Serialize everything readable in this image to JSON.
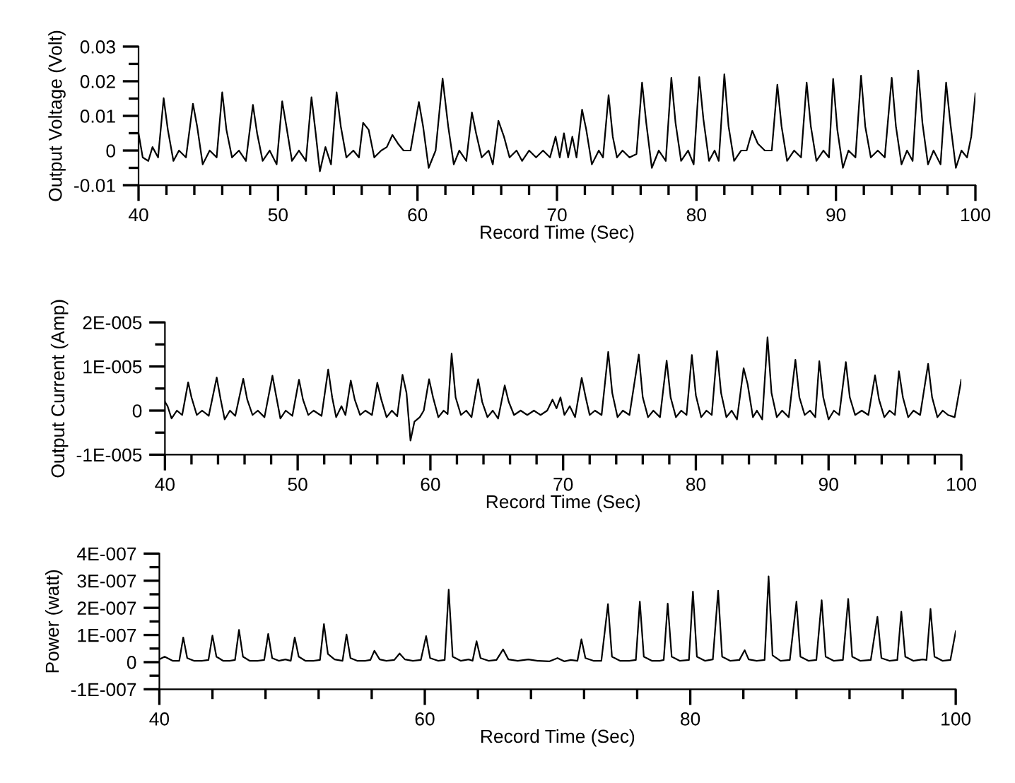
{
  "chart_data": [
    {
      "type": "line",
      "xlabel": "Record Time (Sec)",
      "ylabel": "Output Voltage (Volt)",
      "xlim": [
        40,
        100
      ],
      "ylim": [
        -0.01,
        0.03
      ],
      "xticks": [
        40,
        {
          "value": 42,
          "label": null
        },
        {
          "value": 44,
          "label": null
        },
        {
          "value": 46,
          "label": null
        },
        {
          "value": 48,
          "label": null
        },
        50,
        {
          "value": 52,
          "label": null
        },
        {
          "value": 54,
          "label": null
        },
        {
          "value": 56,
          "label": null
        },
        {
          "value": 58,
          "label": null
        },
        60,
        {
          "value": 62,
          "label": null
        },
        {
          "value": 64,
          "label": null
        },
        {
          "value": 66,
          "label": null
        },
        {
          "value": 68,
          "label": null
        },
        70,
        {
          "value": 72,
          "label": null
        },
        {
          "value": 74,
          "label": null
        },
        {
          "value": 76,
          "label": null
        },
        {
          "value": 78,
          "label": null
        },
        80,
        {
          "value": 82,
          "label": null
        },
        {
          "value": 84,
          "label": null
        },
        {
          "value": 86,
          "label": null
        },
        {
          "value": 88,
          "label": null
        },
        90,
        {
          "value": 92,
          "label": null
        },
        {
          "value": 94,
          "label": null
        },
        {
          "value": 96,
          "label": null
        },
        {
          "value": 98,
          "label": null
        },
        100
      ],
      "yticks": [
        -0.01,
        {
          "value": -0.005,
          "label": null
        },
        0,
        {
          "value": 0.005,
          "label": null
        },
        0.01,
        {
          "value": 0.015,
          "label": null
        },
        0.02,
        {
          "value": 0.025,
          "label": null
        },
        0.03
      ],
      "x": [
        40.0,
        40.3,
        40.7,
        41.0,
        41.4,
        41.8,
        42.1,
        42.5,
        42.9,
        43.4,
        43.9,
        44.2,
        44.6,
        45.1,
        45.6,
        46.0,
        46.3,
        46.7,
        47.2,
        47.7,
        48.2,
        48.5,
        48.9,
        49.4,
        49.9,
        50.3,
        50.6,
        51.0,
        51.5,
        52.0,
        52.4,
        52.7,
        53.0,
        53.4,
        53.8,
        54.2,
        54.5,
        54.9,
        55.4,
        55.8,
        56.1,
        56.5,
        56.9,
        57.4,
        57.8,
        58.2,
        58.6,
        59.0,
        59.5,
        60.1,
        60.4,
        60.8,
        61.3,
        61.8,
        62.2,
        62.6,
        63.0,
        63.5,
        63.9,
        64.2,
        64.6,
        65.1,
        65.4,
        65.8,
        66.2,
        66.6,
        67.1,
        67.5,
        68.0,
        68.5,
        69.0,
        69.5,
        69.9,
        70.2,
        70.5,
        70.8,
        71.1,
        71.4,
        71.8,
        72.1,
        72.5,
        73.0,
        73.3,
        73.7,
        74.0,
        74.3,
        74.7,
        75.2,
        75.7,
        76.1,
        76.4,
        76.8,
        77.3,
        77.8,
        78.2,
        78.5,
        78.9,
        79.4,
        79.8,
        80.2,
        80.5,
        80.9,
        81.3,
        81.6,
        82.0,
        82.3,
        82.7,
        83.2,
        83.6,
        84.0,
        84.4,
        84.9,
        85.4,
        85.8,
        86.1,
        86.5,
        87.0,
        87.5,
        87.9,
        88.2,
        88.6,
        89.1,
        89.5,
        89.8,
        90.1,
        90.5,
        90.9,
        91.4,
        91.8,
        92.1,
        92.5,
        93.0,
        93.5,
        94.0,
        94.3,
        94.7,
        95.1,
        95.5,
        95.9,
        96.2,
        96.6,
        97.0,
        97.5,
        97.9,
        98.2,
        98.6,
        99.0,
        99.4,
        99.7,
        100.0
      ],
      "series": [
        {
          "color": "#000000",
          "values": [
            0.005,
            -0.002,
            -0.003,
            0.001,
            -0.002,
            0.0151,
            0.006,
            -0.003,
            0.0,
            -0.002,
            0.0135,
            0.007,
            -0.004,
            0.0,
            -0.002,
            0.0168,
            0.006,
            -0.002,
            0.0,
            -0.003,
            0.0132,
            0.005,
            -0.003,
            0.0,
            -0.004,
            0.0142,
            0.007,
            -0.003,
            0.0,
            -0.003,
            0.0154,
            0.005,
            -0.006,
            0.001,
            -0.004,
            0.0168,
            0.007,
            -0.002,
            0.0,
            -0.002,
            0.008,
            0.006,
            -0.002,
            0.0,
            0.001,
            0.0045,
            0.002,
            0.0,
            0.0,
            0.014,
            0.007,
            -0.005,
            0.0,
            0.0208,
            0.007,
            -0.004,
            0.0,
            -0.003,
            0.011,
            0.005,
            -0.002,
            0.0,
            -0.004,
            0.0086,
            0.004,
            -0.002,
            0.0,
            -0.003,
            0.0,
            -0.002,
            0.0,
            -0.002,
            0.004,
            -0.002,
            0.005,
            -0.002,
            0.004,
            -0.002,
            0.0118,
            0.006,
            -0.004,
            0.0,
            -0.002,
            0.016,
            0.004,
            -0.002,
            0.0,
            -0.002,
            -0.001,
            0.0196,
            0.008,
            -0.005,
            0.0,
            -0.003,
            0.021,
            0.008,
            -0.003,
            0.0,
            -0.004,
            0.0212,
            0.009,
            -0.003,
            0.0,
            -0.003,
            0.022,
            0.007,
            -0.003,
            0.0,
            0.0,
            0.0057,
            0.002,
            0.0,
            0.0,
            0.019,
            0.007,
            -0.003,
            0.0,
            -0.002,
            0.0196,
            0.007,
            -0.003,
            0.0,
            -0.002,
            0.0207,
            0.006,
            -0.005,
            0.0,
            -0.002,
            0.0216,
            0.007,
            -0.002,
            0.0,
            -0.002,
            0.021,
            0.007,
            -0.004,
            0.0,
            -0.003,
            0.0231,
            0.008,
            -0.004,
            0.0,
            -0.004,
            0.0196,
            0.008,
            -0.005,
            0.0,
            -0.002,
            0.004,
            0.0165
          ]
        }
      ]
    },
    {
      "type": "line",
      "xlabel": "Record Time (Sec)",
      "ylabel": "Output Current (Amp)",
      "xlim": [
        40,
        100
      ],
      "ylim": [
        -1e-05,
        2e-05
      ],
      "xticks": [
        40,
        {
          "value": 42,
          "label": null
        },
        {
          "value": 44,
          "label": null
        },
        {
          "value": 46,
          "label": null
        },
        {
          "value": 48,
          "label": null
        },
        50,
        {
          "value": 52,
          "label": null
        },
        {
          "value": 54,
          "label": null
        },
        {
          "value": 56,
          "label": null
        },
        {
          "value": 58,
          "label": null
        },
        60,
        {
          "value": 62,
          "label": null
        },
        {
          "value": 64,
          "label": null
        },
        {
          "value": 66,
          "label": null
        },
        {
          "value": 68,
          "label": null
        },
        70,
        {
          "value": 72,
          "label": null
        },
        {
          "value": 74,
          "label": null
        },
        {
          "value": 76,
          "label": null
        },
        {
          "value": 78,
          "label": null
        },
        80,
        {
          "value": 82,
          "label": null
        },
        {
          "value": 84,
          "label": null
        },
        {
          "value": 86,
          "label": null
        },
        {
          "value": 88,
          "label": null
        },
        90,
        {
          "value": 92,
          "label": null
        },
        {
          "value": 94,
          "label": null
        },
        {
          "value": 96,
          "label": null
        },
        {
          "value": 98,
          "label": null
        },
        100
      ],
      "yticks": [
        {
          "value": -1e-05,
          "label": "-1E-005"
        },
        {
          "value": -5e-06,
          "label": null
        },
        0,
        {
          "value": 5e-06,
          "label": null
        },
        {
          "value": 1e-05,
          "label": "1E-005"
        },
        {
          "value": 1.5e-05,
          "label": null
        },
        {
          "value": 2e-05,
          "label": "2E-005"
        }
      ],
      "x": [
        40.0,
        40.2,
        40.5,
        40.9,
        41.3,
        41.75,
        42.0,
        42.4,
        42.8,
        43.3,
        43.9,
        44.2,
        44.5,
        44.9,
        45.3,
        45.9,
        46.2,
        46.6,
        47.0,
        47.5,
        48.1,
        48.4,
        48.7,
        49.1,
        49.6,
        50.1,
        50.4,
        50.8,
        51.2,
        51.8,
        52.3,
        52.6,
        52.9,
        53.3,
        53.6,
        54.0,
        54.3,
        54.7,
        55.1,
        55.6,
        56.0,
        56.3,
        56.7,
        57.1,
        57.5,
        57.9,
        58.2,
        58.5,
        58.8,
        59.2,
        59.5,
        59.9,
        60.2,
        60.6,
        61.0,
        61.3,
        61.6,
        61.9,
        62.3,
        62.7,
        63.1,
        63.6,
        63.9,
        64.3,
        64.7,
        65.1,
        65.6,
        65.9,
        66.3,
        66.8,
        67.3,
        67.8,
        68.3,
        68.8,
        69.2,
        69.5,
        69.8,
        70.1,
        70.5,
        70.9,
        71.4,
        71.7,
        72.0,
        72.4,
        72.9,
        73.4,
        73.7,
        74.1,
        74.5,
        75.0,
        75.7,
        76.0,
        76.4,
        76.8,
        77.3,
        77.8,
        78.1,
        78.5,
        78.9,
        79.3,
        79.7,
        80.0,
        80.4,
        80.8,
        81.2,
        81.6,
        81.9,
        82.3,
        82.7,
        83.1,
        83.6,
        83.9,
        84.3,
        84.6,
        85.0,
        85.4,
        85.7,
        86.1,
        86.5,
        87.0,
        87.5,
        87.8,
        88.2,
        88.6,
        89.0,
        89.3,
        89.6,
        90.0,
        90.4,
        90.8,
        91.3,
        91.6,
        92.0,
        92.5,
        93.0,
        93.5,
        93.8,
        94.2,
        94.6,
        95.0,
        95.3,
        95.6,
        96.0,
        96.4,
        96.9,
        97.5,
        97.8,
        98.2,
        98.6,
        99.0,
        99.5,
        100.0
      ],
      "series": [
        {
          "color": "#000000",
          "values": [
            2e-06,
            1e-06,
            -1.8e-06,
            0.0,
            -1e-06,
            6.4e-06,
            3e-06,
            -1e-06,
            0.0,
            -1.2e-06,
            7.5e-06,
            2.5e-06,
            -2e-06,
            0.0,
            -1.2e-06,
            7.2e-06,
            2.5e-06,
            -1e-06,
            0.0,
            -1.5e-06,
            7.9e-06,
            3e-06,
            -1.8e-06,
            0.0,
            -1.2e-06,
            7e-06,
            2.5e-06,
            -1e-06,
            0.0,
            -1.2e-06,
            9.3e-06,
            3e-06,
            -1.5e-06,
            1e-06,
            -1e-06,
            6.8e-06,
            2.5e-06,
            -1e-06,
            0.0,
            -1e-06,
            6.3e-06,
            2.5e-06,
            -1.5e-06,
            0.0,
            -1.3e-06,
            8.1e-06,
            4e-06,
            -6.8e-06,
            -2.5e-06,
            -1.5e-06,
            0.0,
            7.1e-06,
            3e-06,
            -1.5e-06,
            0.0,
            -8e-07,
            1.29e-05,
            3e-06,
            -1e-06,
            0.0,
            -1.5e-06,
            7.1e-06,
            2e-06,
            -1.5e-06,
            0.0,
            -1.8e-06,
            5.7e-06,
            2e-06,
            -1e-06,
            0.0,
            -1e-06,
            0.0,
            -1e-06,
            0.0,
            2.5e-06,
            5e-07,
            3e-06,
            -1e-06,
            1e-06,
            -1.5e-06,
            7.4e-06,
            3e-06,
            -1e-06,
            0.0,
            -1e-06,
            1.33e-05,
            4e-06,
            -1.5e-06,
            0.0,
            -1e-06,
            1.27e-05,
            3e-06,
            -1.5e-06,
            0.0,
            -1.5e-06,
            1.13e-05,
            3e-06,
            -1.5e-06,
            0.0,
            -1e-06,
            1.26e-05,
            3.5e-06,
            -1.5e-06,
            0.0,
            -1e-06,
            1.35e-05,
            4e-06,
            -1.5e-06,
            0.0,
            -2e-06,
            9.6e-06,
            6e-06,
            -1.5e-06,
            0.0,
            -2e-06,
            1.66e-05,
            4e-06,
            -1.5e-06,
            0.0,
            -1.5e-06,
            1.15e-05,
            3e-06,
            -1e-06,
            0.0,
            -1.5e-06,
            1.12e-05,
            3e-06,
            -2e-06,
            0.0,
            -1e-06,
            1.1e-05,
            3e-06,
            -1e-06,
            0.0,
            -1e-06,
            8e-06,
            2.5e-06,
            -1.5e-06,
            0.0,
            -1e-06,
            8.9e-06,
            3e-06,
            -1.5e-06,
            0.0,
            -1e-06,
            1.06e-05,
            3e-06,
            -1.5e-06,
            0.0,
            -1e-06,
            -1.5e-06,
            7e-06
          ]
        }
      ]
    },
    {
      "type": "line",
      "xlabel": "Record Time (Sec)",
      "ylabel": "Power (watt)",
      "xlim": [
        40,
        100
      ],
      "ylim": [
        -1e-07,
        4e-07
      ],
      "xticks": [
        40,
        {
          "value": 44,
          "label": null
        },
        {
          "value": 48,
          "label": null
        },
        {
          "value": 52,
          "label": null
        },
        {
          "value": 56,
          "label": null
        },
        60,
        {
          "value": 64,
          "label": null
        },
        {
          "value": 68,
          "label": null
        },
        {
          "value": 72,
          "label": null
        },
        {
          "value": 76,
          "label": null
        },
        80,
        {
          "value": 84,
          "label": null
        },
        {
          "value": 88,
          "label": null
        },
        {
          "value": 92,
          "label": null
        },
        {
          "value": 96,
          "label": null
        },
        100
      ],
      "yticks": [
        {
          "value": -1e-07,
          "label": "-1E-007"
        },
        {
          "value": -5e-08,
          "label": null
        },
        0,
        {
          "value": 5e-08,
          "label": null
        },
        {
          "value": 1e-07,
          "label": "1E-007"
        },
        {
          "value": 1.5e-07,
          "label": null
        },
        {
          "value": 2e-07,
          "label": "2E-007"
        },
        {
          "value": 2.5e-07,
          "label": null
        },
        {
          "value": 3e-07,
          "label": "3E-007"
        },
        {
          "value": 3.5e-07,
          "label": null
        },
        {
          "value": 4e-07,
          "label": "4E-007"
        }
      ],
      "x": [
        40.0,
        40.4,
        41.0,
        41.5,
        41.8,
        42.1,
        42.6,
        43.2,
        43.7,
        44.0,
        44.3,
        44.8,
        45.3,
        45.7,
        46.0,
        46.3,
        46.8,
        47.4,
        47.9,
        48.2,
        48.5,
        49.0,
        49.5,
        49.9,
        50.2,
        50.5,
        51.0,
        51.6,
        52.1,
        52.4,
        52.7,
        53.2,
        53.8,
        54.1,
        54.4,
        54.9,
        55.5,
        55.9,
        56.2,
        56.6,
        57.1,
        57.7,
        58.1,
        58.5,
        59.1,
        59.7,
        60.1,
        60.4,
        61.0,
        61.5,
        61.8,
        62.1,
        62.7,
        63.3,
        63.6,
        63.9,
        64.2,
        64.8,
        65.4,
        65.9,
        66.3,
        67.0,
        67.8,
        68.5,
        69.4,
        70.0,
        70.5,
        71.0,
        71.5,
        71.8,
        72.1,
        72.7,
        73.3,
        73.8,
        74.1,
        74.7,
        75.4,
        75.9,
        76.2,
        76.5,
        77.1,
        77.7,
        78.0,
        78.3,
        78.6,
        79.2,
        79.9,
        80.2,
        80.5,
        81.1,
        81.7,
        82.1,
        82.4,
        83.0,
        83.7,
        84.1,
        84.4,
        85.0,
        85.6,
        85.9,
        86.2,
        86.8,
        87.5,
        88.0,
        88.3,
        88.9,
        89.5,
        89.9,
        90.2,
        90.8,
        91.5,
        91.9,
        92.2,
        92.8,
        93.6,
        94.1,
        94.4,
        95.0,
        95.6,
        95.9,
        96.2,
        96.8,
        97.5,
        97.8,
        98.1,
        98.4,
        99.0,
        99.6,
        100.0
      ],
      "series": [
        {
          "color": "#000000",
          "values": [
            1e-08,
            2e-08,
            5e-09,
            5e-09,
            9.1e-08,
            1.5e-08,
            5e-09,
            5e-09,
            8e-09,
            9.8e-08,
            2e-08,
            5e-09,
            5e-09,
            8e-09,
            1.19e-07,
            2e-08,
            5e-09,
            5e-09,
            8e-09,
            1.04e-07,
            1.5e-08,
            5e-09,
            1e-08,
            5e-09,
            9.1e-08,
            2e-08,
            5e-09,
            5e-09,
            8e-09,
            1.4e-07,
            3e-08,
            1e-08,
            5e-09,
            1.02e-07,
            1.5e-08,
            5e-09,
            5e-09,
            8e-09,
            4.2e-08,
            1e-08,
            5e-09,
            8e-09,
            3.2e-08,
            1e-08,
            5e-09,
            8e-09,
            9.6e-08,
            1.5e-08,
            5e-09,
            8e-09,
            2.67e-07,
            2e-08,
            5e-09,
            1e-08,
            5e-09,
            7.7e-08,
            1.5e-08,
            5e-09,
            8e-09,
            4.7e-08,
            1e-08,
            5e-09,
            1e-08,
            5e-09,
            3e-09,
            1.5e-08,
            3e-09,
            8e-09,
            5e-09,
            8.4e-08,
            1.5e-08,
            5e-09,
            5e-09,
            2.14e-07,
            2e-08,
            5e-09,
            5e-09,
            8e-09,
            2.23e-07,
            2e-08,
            5e-09,
            5e-09,
            8e-09,
            2.16e-07,
            2e-08,
            5e-09,
            8e-09,
            2.6e-07,
            2e-08,
            5e-09,
            1e-08,
            2.63e-07,
            2e-08,
            5e-09,
            8e-09,
            4.4e-08,
            1e-08,
            5e-09,
            8e-09,
            3.16e-07,
            2.5e-08,
            5e-09,
            8e-09,
            2.23e-07,
            2e-08,
            5e-09,
            8e-09,
            2.28e-07,
            2e-08,
            5e-09,
            8e-09,
            2.33e-07,
            2e-08,
            5e-09,
            8e-09,
            1.67e-07,
            1.5e-08,
            5e-09,
            8e-09,
            1.86e-07,
            2e-08,
            5e-09,
            1e-08,
            8e-09,
            1.96e-07,
            2e-08,
            5e-09,
            8e-09,
            1.14e-07
          ]
        }
      ]
    }
  ]
}
